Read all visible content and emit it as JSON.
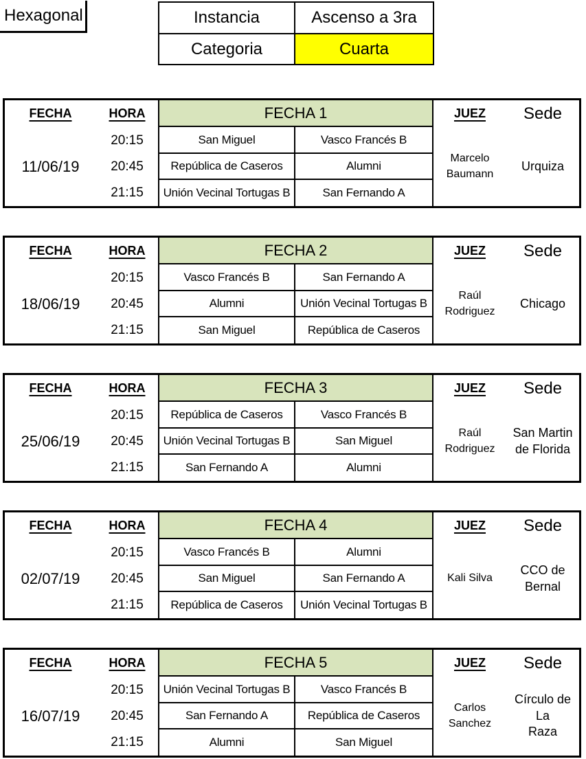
{
  "header": {
    "tournament_label": "Hexagonal",
    "info": {
      "instancia_label": "Instancia",
      "instancia_value": "Ascenso a 3ra",
      "categoria_label": "Categoria",
      "categoria_value": "Cuarta"
    }
  },
  "column_headers": {
    "fecha": "FECHA",
    "hora": "HORA",
    "juez": "JUEZ",
    "sede": "Sede"
  },
  "colors": {
    "round_header_bg": "#d8e4bc",
    "highlight_bg": "#ffff00",
    "border": "#000000"
  },
  "rounds": [
    {
      "date": "11/06/19",
      "round_label": "FECHA 1",
      "judge": "Marcelo\nBaumann",
      "venue": "Urquiza",
      "matches": [
        {
          "time": "20:15",
          "home": "San Miguel",
          "away": "Vasco Francés B"
        },
        {
          "time": "20:45",
          "home": "República de Caseros",
          "away": "Alumni"
        },
        {
          "time": "21:15",
          "home": "Unión Vecinal Tortugas B",
          "away": "San Fernando A"
        }
      ]
    },
    {
      "date": "18/06/19",
      "round_label": "FECHA 2",
      "judge": "Raúl\nRodriguez",
      "venue": "Chicago",
      "matches": [
        {
          "time": "20:15",
          "home": "Vasco Francés B",
          "away": "San Fernando A"
        },
        {
          "time": "20:45",
          "home": "Alumni",
          "away": "Unión Vecinal Tortugas B"
        },
        {
          "time": "21:15",
          "home": "San Miguel",
          "away": "República de Caseros"
        }
      ]
    },
    {
      "date": "25/06/19",
      "round_label": "FECHA 3",
      "judge": "Raúl\nRodriguez",
      "venue": "San Martin\nde Florida",
      "matches": [
        {
          "time": "20:15",
          "home": "República de Caseros",
          "away": "Vasco Francés B"
        },
        {
          "time": "20:45",
          "home": "Unión Vecinal Tortugas B",
          "away": "San Miguel"
        },
        {
          "time": "21:15",
          "home": "San Fernando A",
          "away": "Alumni"
        }
      ]
    },
    {
      "date": "02/07/19",
      "round_label": "FECHA 4",
      "judge": "Kali Silva",
      "venue": "CCO de\nBernal",
      "matches": [
        {
          "time": "20:15",
          "home": "Vasco Francés B",
          "away": "Alumni"
        },
        {
          "time": "20:45",
          "home": "San Miguel",
          "away": "San Fernando A"
        },
        {
          "time": "21:15",
          "home": "República de Caseros",
          "away": "Unión Vecinal Tortugas B"
        }
      ]
    },
    {
      "date": "16/07/19",
      "round_label": "FECHA 5",
      "judge": "Carlos\nSanchez",
      "venue": "Círculo de La\nRaza",
      "matches": [
        {
          "time": "20:15",
          "home": "Unión Vecinal Tortugas B",
          "away": "Vasco Francés B"
        },
        {
          "time": "20:45",
          "home": "San Fernando A",
          "away": "República de Caseros"
        },
        {
          "time": "21:15",
          "home": "Alumni",
          "away": "San Miguel"
        }
      ]
    }
  ]
}
